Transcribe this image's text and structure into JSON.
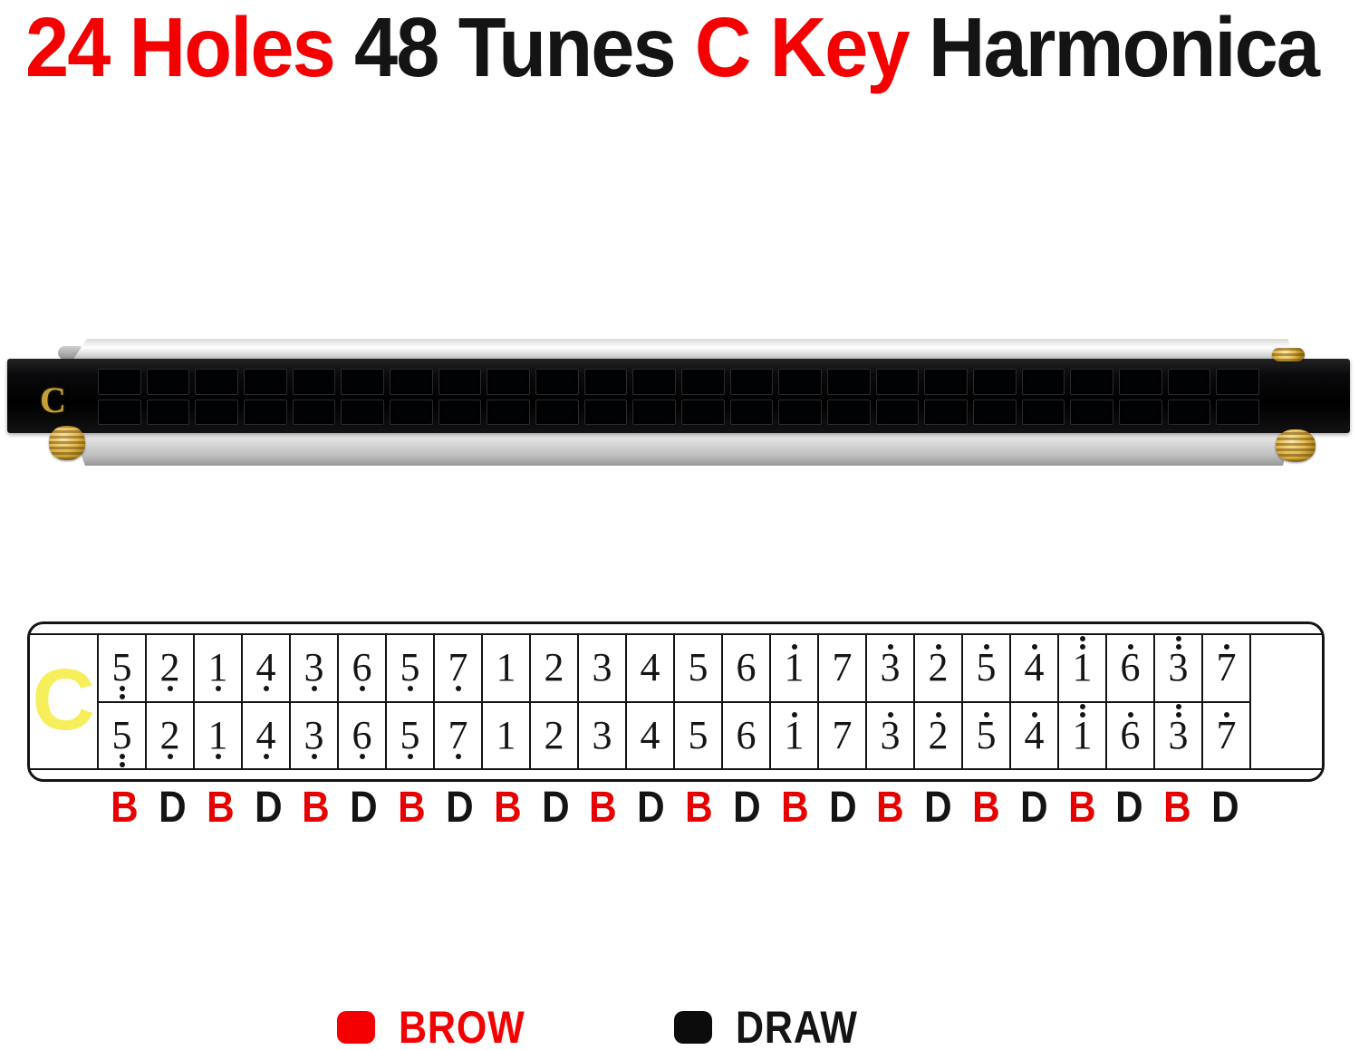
{
  "title": {
    "segments": [
      {
        "text": "24 Holes ",
        "color": "#f40000"
      },
      {
        "text": "48 Tunes ",
        "color": "#141414"
      },
      {
        "text": "C Key ",
        "color": "#f40000"
      },
      {
        "text": "Harmonica",
        "color": "#141414"
      }
    ]
  },
  "harmonica": {
    "key_label": "C",
    "hole_rows": 2,
    "hole_columns": 24
  },
  "chart": {
    "key_label": "C",
    "note_rows": 2,
    "columns": [
      {
        "note": "5",
        "dots_above": 0,
        "dots_below": 2
      },
      {
        "note": "2",
        "dots_above": 0,
        "dots_below": 1
      },
      {
        "note": "1",
        "dots_above": 0,
        "dots_below": 1
      },
      {
        "note": "4",
        "dots_above": 0,
        "dots_below": 1
      },
      {
        "note": "3",
        "dots_above": 0,
        "dots_below": 1
      },
      {
        "note": "6",
        "dots_above": 0,
        "dots_below": 1
      },
      {
        "note": "5",
        "dots_above": 0,
        "dots_below": 1
      },
      {
        "note": "7",
        "dots_above": 0,
        "dots_below": 1
      },
      {
        "note": "1",
        "dots_above": 0,
        "dots_below": 0
      },
      {
        "note": "2",
        "dots_above": 0,
        "dots_below": 0
      },
      {
        "note": "3",
        "dots_above": 0,
        "dots_below": 0
      },
      {
        "note": "4",
        "dots_above": 0,
        "dots_below": 0
      },
      {
        "note": "5",
        "dots_above": 0,
        "dots_below": 0
      },
      {
        "note": "6",
        "dots_above": 0,
        "dots_below": 0
      },
      {
        "note": "1",
        "dots_above": 1,
        "dots_below": 0
      },
      {
        "note": "7",
        "dots_above": 0,
        "dots_below": 0
      },
      {
        "note": "3",
        "dots_above": 1,
        "dots_below": 0
      },
      {
        "note": "2",
        "dots_above": 1,
        "dots_below": 0
      },
      {
        "note": "5",
        "dots_above": 1,
        "dots_below": 0
      },
      {
        "note": "4",
        "dots_above": 1,
        "dots_below": 0
      },
      {
        "note": "1",
        "dots_above": 2,
        "dots_below": 0
      },
      {
        "note": "6",
        "dots_above": 1,
        "dots_below": 0
      },
      {
        "note": "3",
        "dots_above": 2,
        "dots_below": 0
      },
      {
        "note": "7",
        "dots_above": 1,
        "dots_below": 0
      }
    ],
    "breath_letters": [
      "B",
      "D",
      "B",
      "D",
      "B",
      "D",
      "B",
      "D",
      "B",
      "D",
      "B",
      "D",
      "B",
      "D",
      "B",
      "D",
      "B",
      "D",
      "B",
      "D",
      "B",
      "D",
      "B",
      "D"
    ]
  },
  "legend": {
    "blow": {
      "label": "BROW",
      "swatch_color": "#f40000",
      "text_color": "#f40000"
    },
    "draw": {
      "label": "DRAW",
      "swatch_color": "#0c0c0c",
      "text_color": "#141414"
    }
  },
  "colors": {
    "red": "#e60000",
    "black": "#141414"
  }
}
